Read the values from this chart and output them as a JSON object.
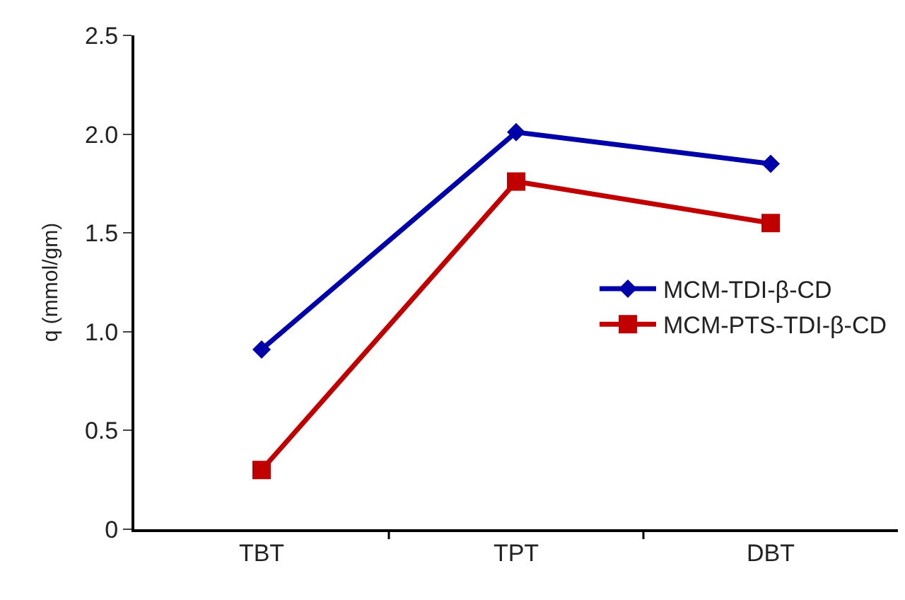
{
  "chart_data": {
    "type": "line",
    "ylabel": "q (mmol/gm)",
    "categories": [
      "TBT",
      "TPT",
      "DBT"
    ],
    "series": [
      {
        "name": "MCM-TDI-β-CD",
        "color": "#0000a8",
        "marker": "diamond",
        "values": [
          0.91,
          2.01,
          1.85
        ]
      },
      {
        "name": "MCM-PTS-TDI-β-CD",
        "color": "#c00000",
        "marker": "square",
        "values": [
          0.3,
          1.76,
          1.55
        ]
      }
    ],
    "ylim": [
      0,
      2.5
    ],
    "yticks": [
      0,
      {
        "value": 0.5,
        "label": "0.5"
      },
      {
        "value": 1,
        "label": "1.0"
      },
      {
        "value": 1.5,
        "label": "1.5"
      },
      {
        "value": 2,
        "label": "2.0"
      },
      {
        "value": 2.5,
        "label": "2.5"
      }
    ],
    "grid": false,
    "legend": "right",
    "line_style": "solid"
  }
}
